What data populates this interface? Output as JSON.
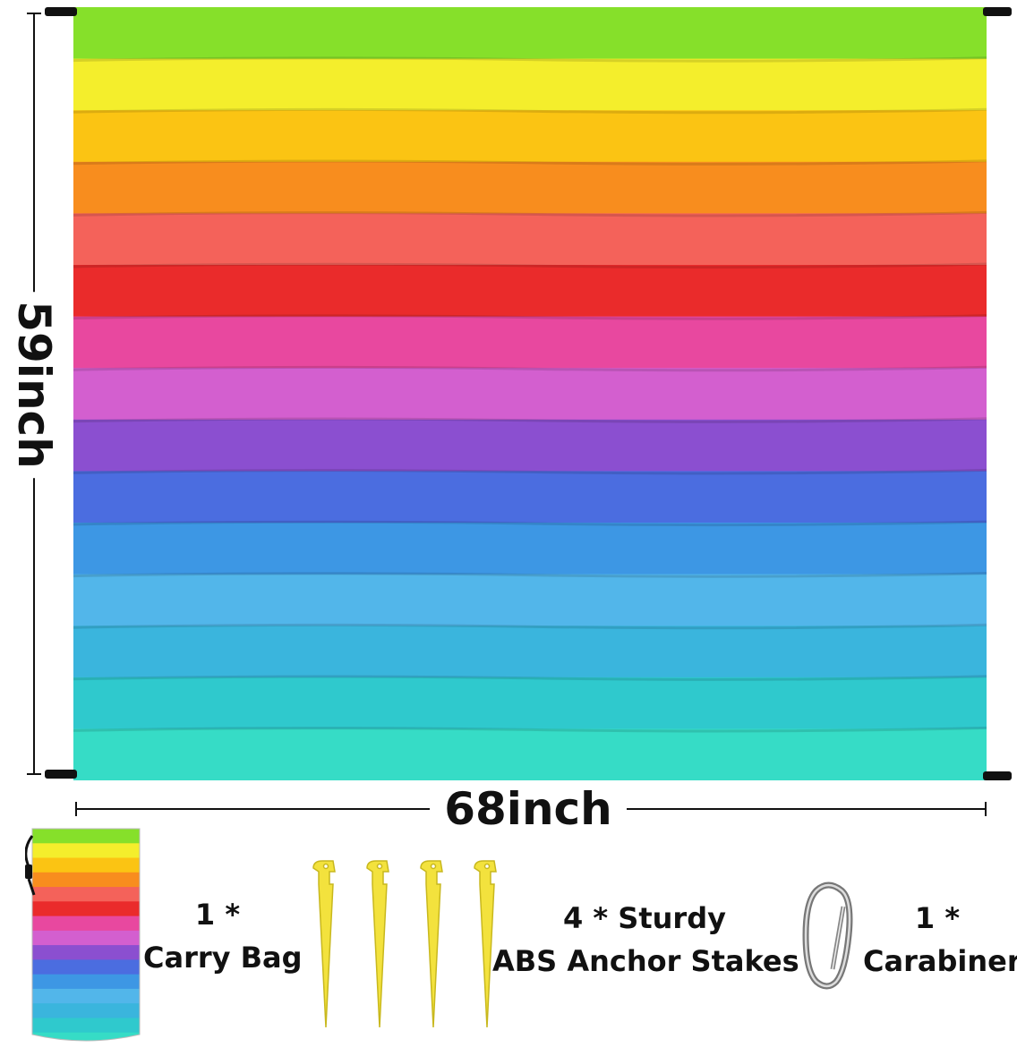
{
  "dimensions": {
    "width_label": "68inch",
    "height_label": "59inch"
  },
  "mat_stripe_colors": [
    "#86e02a",
    "#f4ee2c",
    "#fbc413",
    "#f88d1e",
    "#f4625a",
    "#ea2b2b",
    "#e8489f",
    "#d35fcf",
    "#8b4fd0",
    "#4b6de0",
    "#3d97e4",
    "#52b6ea",
    "#3ab5dd",
    "#2fc9cd",
    "#36dcc6"
  ],
  "accessories": {
    "bag": {
      "line1": "1 *",
      "line2": "Carry Bag",
      "icon": "carry-bag-icon"
    },
    "stakes": {
      "line1": "4 * Sturdy",
      "line2": "ABS Anchor Stakes",
      "icon": "anchor-stake-icon",
      "color": "#f3e23d"
    },
    "carabiner": {
      "line1": "1 *",
      "line2": "Carabiner",
      "icon": "carabiner-icon"
    }
  }
}
